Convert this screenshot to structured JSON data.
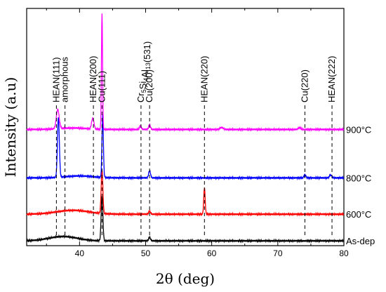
{
  "chart_data": {
    "type": "line",
    "xlabel": "2θ (deg)",
    "ylabel": "Intensity (a.u)",
    "xlim": [
      32,
      80
    ],
    "x_ticks": [
      "40",
      "50",
      "60",
      "70",
      "80"
    ],
    "y_ticks_labeled": false,
    "grid": false,
    "series": [
      {
        "name": "As-dep",
        "color": "#000000",
        "baseline": 0.1,
        "broad_hump": {
          "center": 37.5,
          "width": 3.0,
          "height": 0.09
        },
        "peaks": [
          {
            "x": 43.4,
            "height": 0.93,
            "width": 0.18
          },
          {
            "x": 50.6,
            "height": 0.07,
            "width": 0.2
          }
        ]
      },
      {
        "name": "600°C",
        "color": "#ff0000",
        "baseline": 0.65,
        "broad_hump": {
          "center": 39,
          "width": 3.5,
          "height": 0.08
        },
        "peaks": [
          {
            "x": 43.4,
            "height": 0.9,
            "width": 0.18
          },
          {
            "x": 50.6,
            "height": 0.06,
            "width": 0.2
          },
          {
            "x": 58.9,
            "height": 0.55,
            "width": 0.15
          }
        ]
      },
      {
        "name": "800°C",
        "color": "#0000ff",
        "baseline": 1.4,
        "broad_hump": {
          "center": 40,
          "width": 3.0,
          "height": 0.04
        },
        "peaks": [
          {
            "x": 36.8,
            "height": 1.25,
            "width": 0.2
          },
          {
            "x": 43.5,
            "height": 1.3,
            "width": 0.15
          },
          {
            "x": 50.6,
            "height": 0.15,
            "width": 0.2
          },
          {
            "x": 74.1,
            "height": 0.07,
            "width": 0.2
          },
          {
            "x": 78.0,
            "height": 0.06,
            "width": 0.25
          }
        ]
      },
      {
        "name": "900°C",
        "color": "#ff00ff",
        "baseline": 2.4,
        "broad_hump": {
          "center": 39,
          "width": 3.0,
          "height": 0.03
        },
        "peaks": [
          {
            "x": 36.7,
            "height": 0.4,
            "width": 0.3
          },
          {
            "x": 42.0,
            "height": 0.22,
            "width": 0.25
          },
          {
            "x": 43.4,
            "height": 2.4,
            "width": 0.12
          },
          {
            "x": 49.2,
            "height": 0.07,
            "width": 0.2
          },
          {
            "x": 50.6,
            "height": 0.09,
            "width": 0.2
          },
          {
            "x": 61.5,
            "height": 0.04,
            "width": 0.35
          },
          {
            "x": 73.3,
            "height": 0.04,
            "width": 0.25
          }
        ]
      }
    ],
    "ylim": [
      0,
      4.9
    ],
    "annotations": [
      {
        "label": "HEAN(111)",
        "x": 36.5
      },
      {
        "label": "amorphous",
        "x": 37.8
      },
      {
        "label": "HEAN(200)",
        "x": 42.1
      },
      {
        "label": "Cu(111)",
        "x": 43.4
      },
      {
        "label": "Cr5Si4Al13(531)",
        "x": 49.3
      },
      {
        "label": "Cu(200)",
        "x": 50.6
      },
      {
        "label": "HEAN(220)",
        "x": 58.9
      },
      {
        "label": "Cu(220)",
        "x": 74.1
      },
      {
        "label": "HEAN(222)",
        "x": 78.2
      }
    ]
  }
}
